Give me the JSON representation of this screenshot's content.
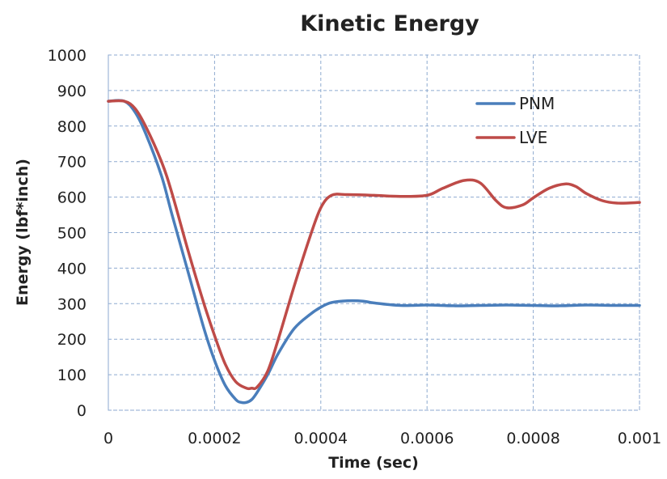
{
  "chart_data": {
    "type": "line",
    "title": "Kinetic Energy",
    "xlabel": "Time (sec)",
    "ylabel": "Energy (lbf*inch)",
    "xlim": [
      0,
      0.001
    ],
    "ylim": [
      0,
      1000
    ],
    "x_ticks": [
      "0",
      "0.0002",
      "0.0004",
      "0.0006",
      "0.0008",
      "0.001"
    ],
    "x_tick_values": [
      0,
      0.0002,
      0.0004,
      0.0006,
      0.0008,
      0.001
    ],
    "y_ticks": [
      "0",
      "100",
      "200",
      "300",
      "400",
      "500",
      "600",
      "700",
      "800",
      "900",
      "1000"
    ],
    "y_tick_values": [
      0,
      100,
      200,
      300,
      400,
      500,
      600,
      700,
      800,
      900,
      1000
    ],
    "grid": true,
    "legend_position": "top-right",
    "series": [
      {
        "name": "PNM",
        "color": "#4a7ebb",
        "x": [
          0,
          3e-05,
          5e-05,
          7e-05,
          0.0001,
          0.00012,
          0.00015,
          0.00018,
          0.0002,
          0.00022,
          0.00024,
          0.00025,
          0.00026,
          0.00027,
          0.00028,
          0.0003,
          0.00032,
          0.00035,
          0.00038,
          0.0004,
          0.00042,
          0.00045,
          0.00048,
          0.0005,
          0.00055,
          0.0006,
          0.00065,
          0.0007,
          0.00075,
          0.0008,
          0.00085,
          0.0009,
          0.00095,
          0.001
        ],
        "y": [
          870,
          870,
          840,
          780,
          660,
          550,
          390,
          230,
          140,
          70,
          30,
          22,
          22,
          30,
          50,
          100,
          160,
          230,
          270,
          290,
          303,
          308,
          307,
          302,
          295,
          296,
          294,
          295,
          296,
          295,
          294,
          296,
          295,
          295
        ]
      },
      {
        "name": "LVE",
        "color": "#be4b48",
        "x": [
          0,
          3e-05,
          5e-05,
          7e-05,
          0.0001,
          0.00012,
          0.00015,
          0.00018,
          0.0002,
          0.00022,
          0.00024,
          0.00026,
          0.00027,
          0.00028,
          0.0003,
          0.00032,
          0.00035,
          0.00038,
          0.0004,
          0.00042,
          0.00045,
          0.0005,
          0.00055,
          0.0006,
          0.00063,
          0.00067,
          0.0007,
          0.00073,
          0.00075,
          0.00078,
          0.0008,
          0.00083,
          0.00086,
          0.00088,
          0.0009,
          0.00093,
          0.00096,
          0.001
        ],
        "y": [
          870,
          870,
          850,
          800,
          700,
          610,
          450,
          300,
          210,
          130,
          80,
          62,
          62,
          65,
          110,
          200,
          350,
          490,
          570,
          605,
          607,
          605,
          602,
          605,
          625,
          647,
          640,
          590,
          570,
          578,
          598,
          625,
          637,
          630,
          610,
          590,
          583,
          585
        ]
      }
    ]
  }
}
